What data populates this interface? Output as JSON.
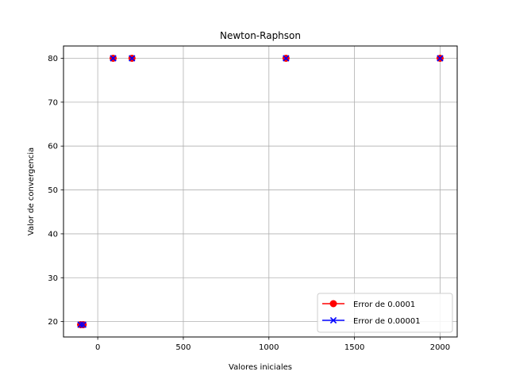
{
  "chart_data": {
    "type": "scatter",
    "title": "Newton-Raphson",
    "xlabel": "Valores iniciales",
    "ylabel": "Valor de convergencia",
    "xlim": [
      -200,
      2100
    ],
    "ylim": [
      16.5,
      82.8
    ],
    "xticks": [
      0,
      500,
      1000,
      1500,
      2000
    ],
    "yticks": [
      20,
      30,
      40,
      50,
      60,
      70,
      80
    ],
    "grid": true,
    "legend_position": "bottom-right",
    "series": [
      {
        "name": "Error de 0.0001",
        "color": "#ff0000",
        "marker": "circle",
        "x": [
          -100,
          -85,
          90,
          200,
          1100,
          2000
        ],
        "y": [
          19.3,
          19.3,
          80,
          80,
          80,
          80
        ]
      },
      {
        "name": "Error de 0.00001",
        "color": "#0000ff",
        "marker": "x",
        "x": [
          -100,
          -85,
          90,
          200,
          1100,
          2000
        ],
        "y": [
          19.3,
          19.3,
          80,
          80,
          80,
          80
        ]
      }
    ]
  }
}
